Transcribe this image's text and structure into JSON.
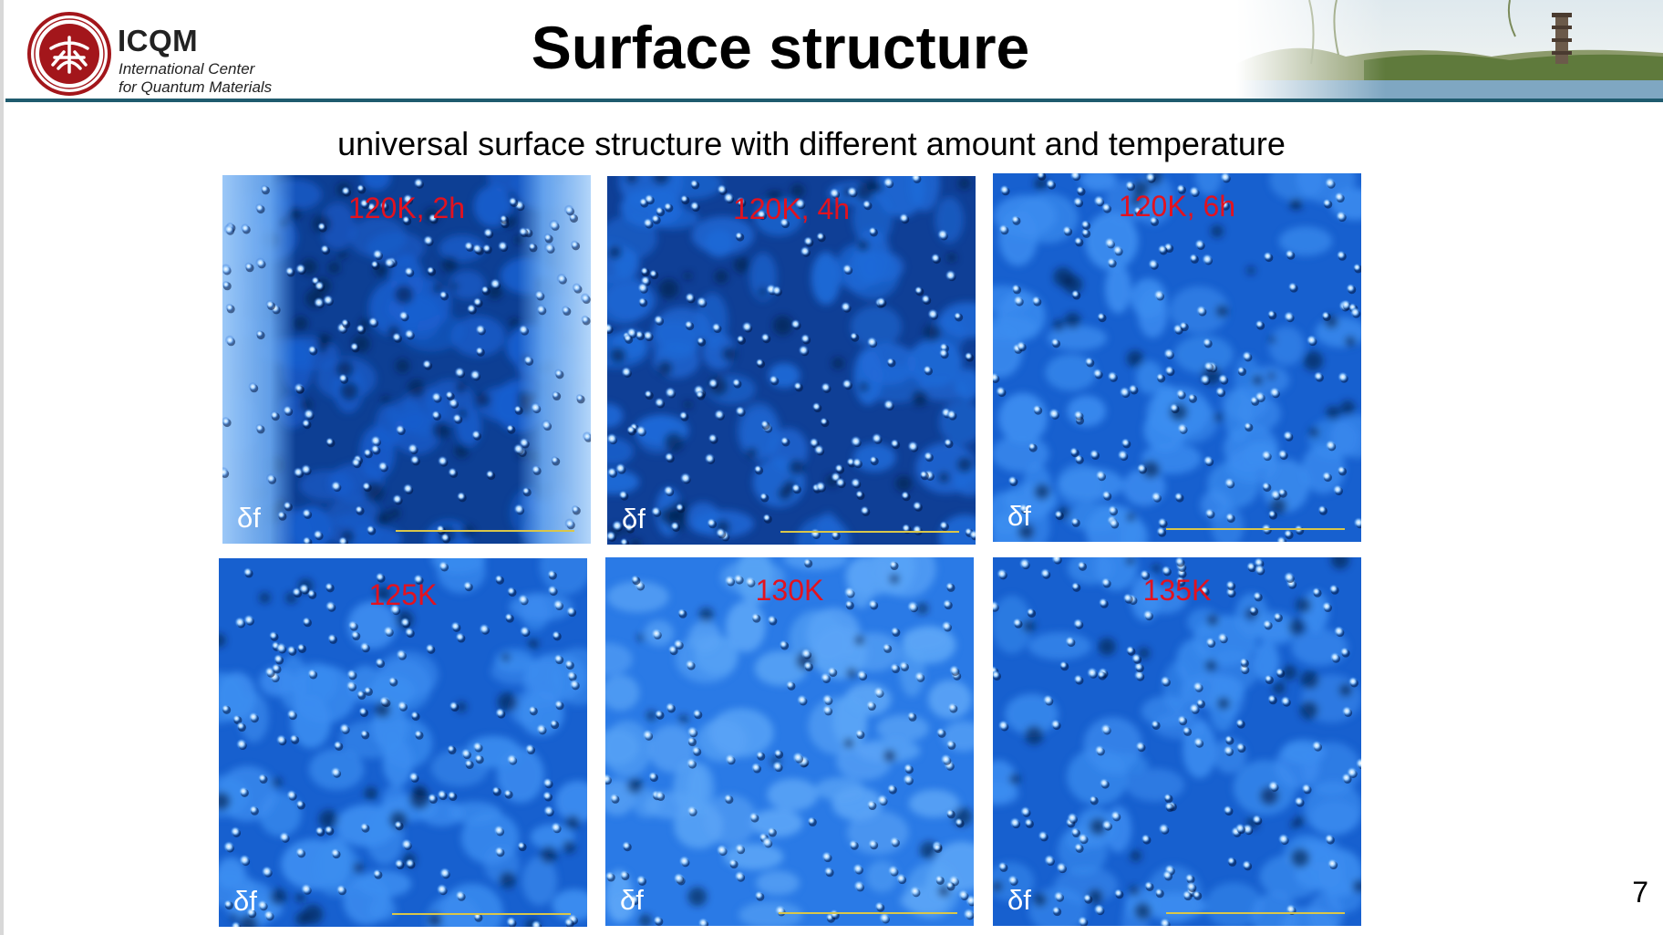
{
  "logo": {
    "seal_lettering": "PEKING UNIVERSITY 1898",
    "name": "ICQM",
    "line1": "International Center",
    "line2": "for Quantum Materials"
  },
  "slide": {
    "title": "Surface structure",
    "subtitle": "universal surface structure with different amount and temperature",
    "page_number": "7"
  },
  "panels": [
    {
      "label": "120K, 2h",
      "signal": "δf",
      "scan_style": "dark-with-bright-edges"
    },
    {
      "label": "120K, 4h",
      "signal": "δf",
      "scan_style": "dark"
    },
    {
      "label": "120K, 6h",
      "signal": "δf",
      "scan_style": "medium"
    },
    {
      "label": "125K",
      "signal": "δf",
      "scan_style": "medium"
    },
    {
      "label": "130K",
      "signal": "δf",
      "scan_style": "light"
    },
    {
      "label": "135K",
      "signal": "δf",
      "scan_style": "medium"
    }
  ],
  "colors": {
    "header_rule": "#1f5b6e",
    "panel_label": "#e3121f",
    "scan_blue": "#1e6fd9",
    "scalebar": "#d9c64a"
  }
}
